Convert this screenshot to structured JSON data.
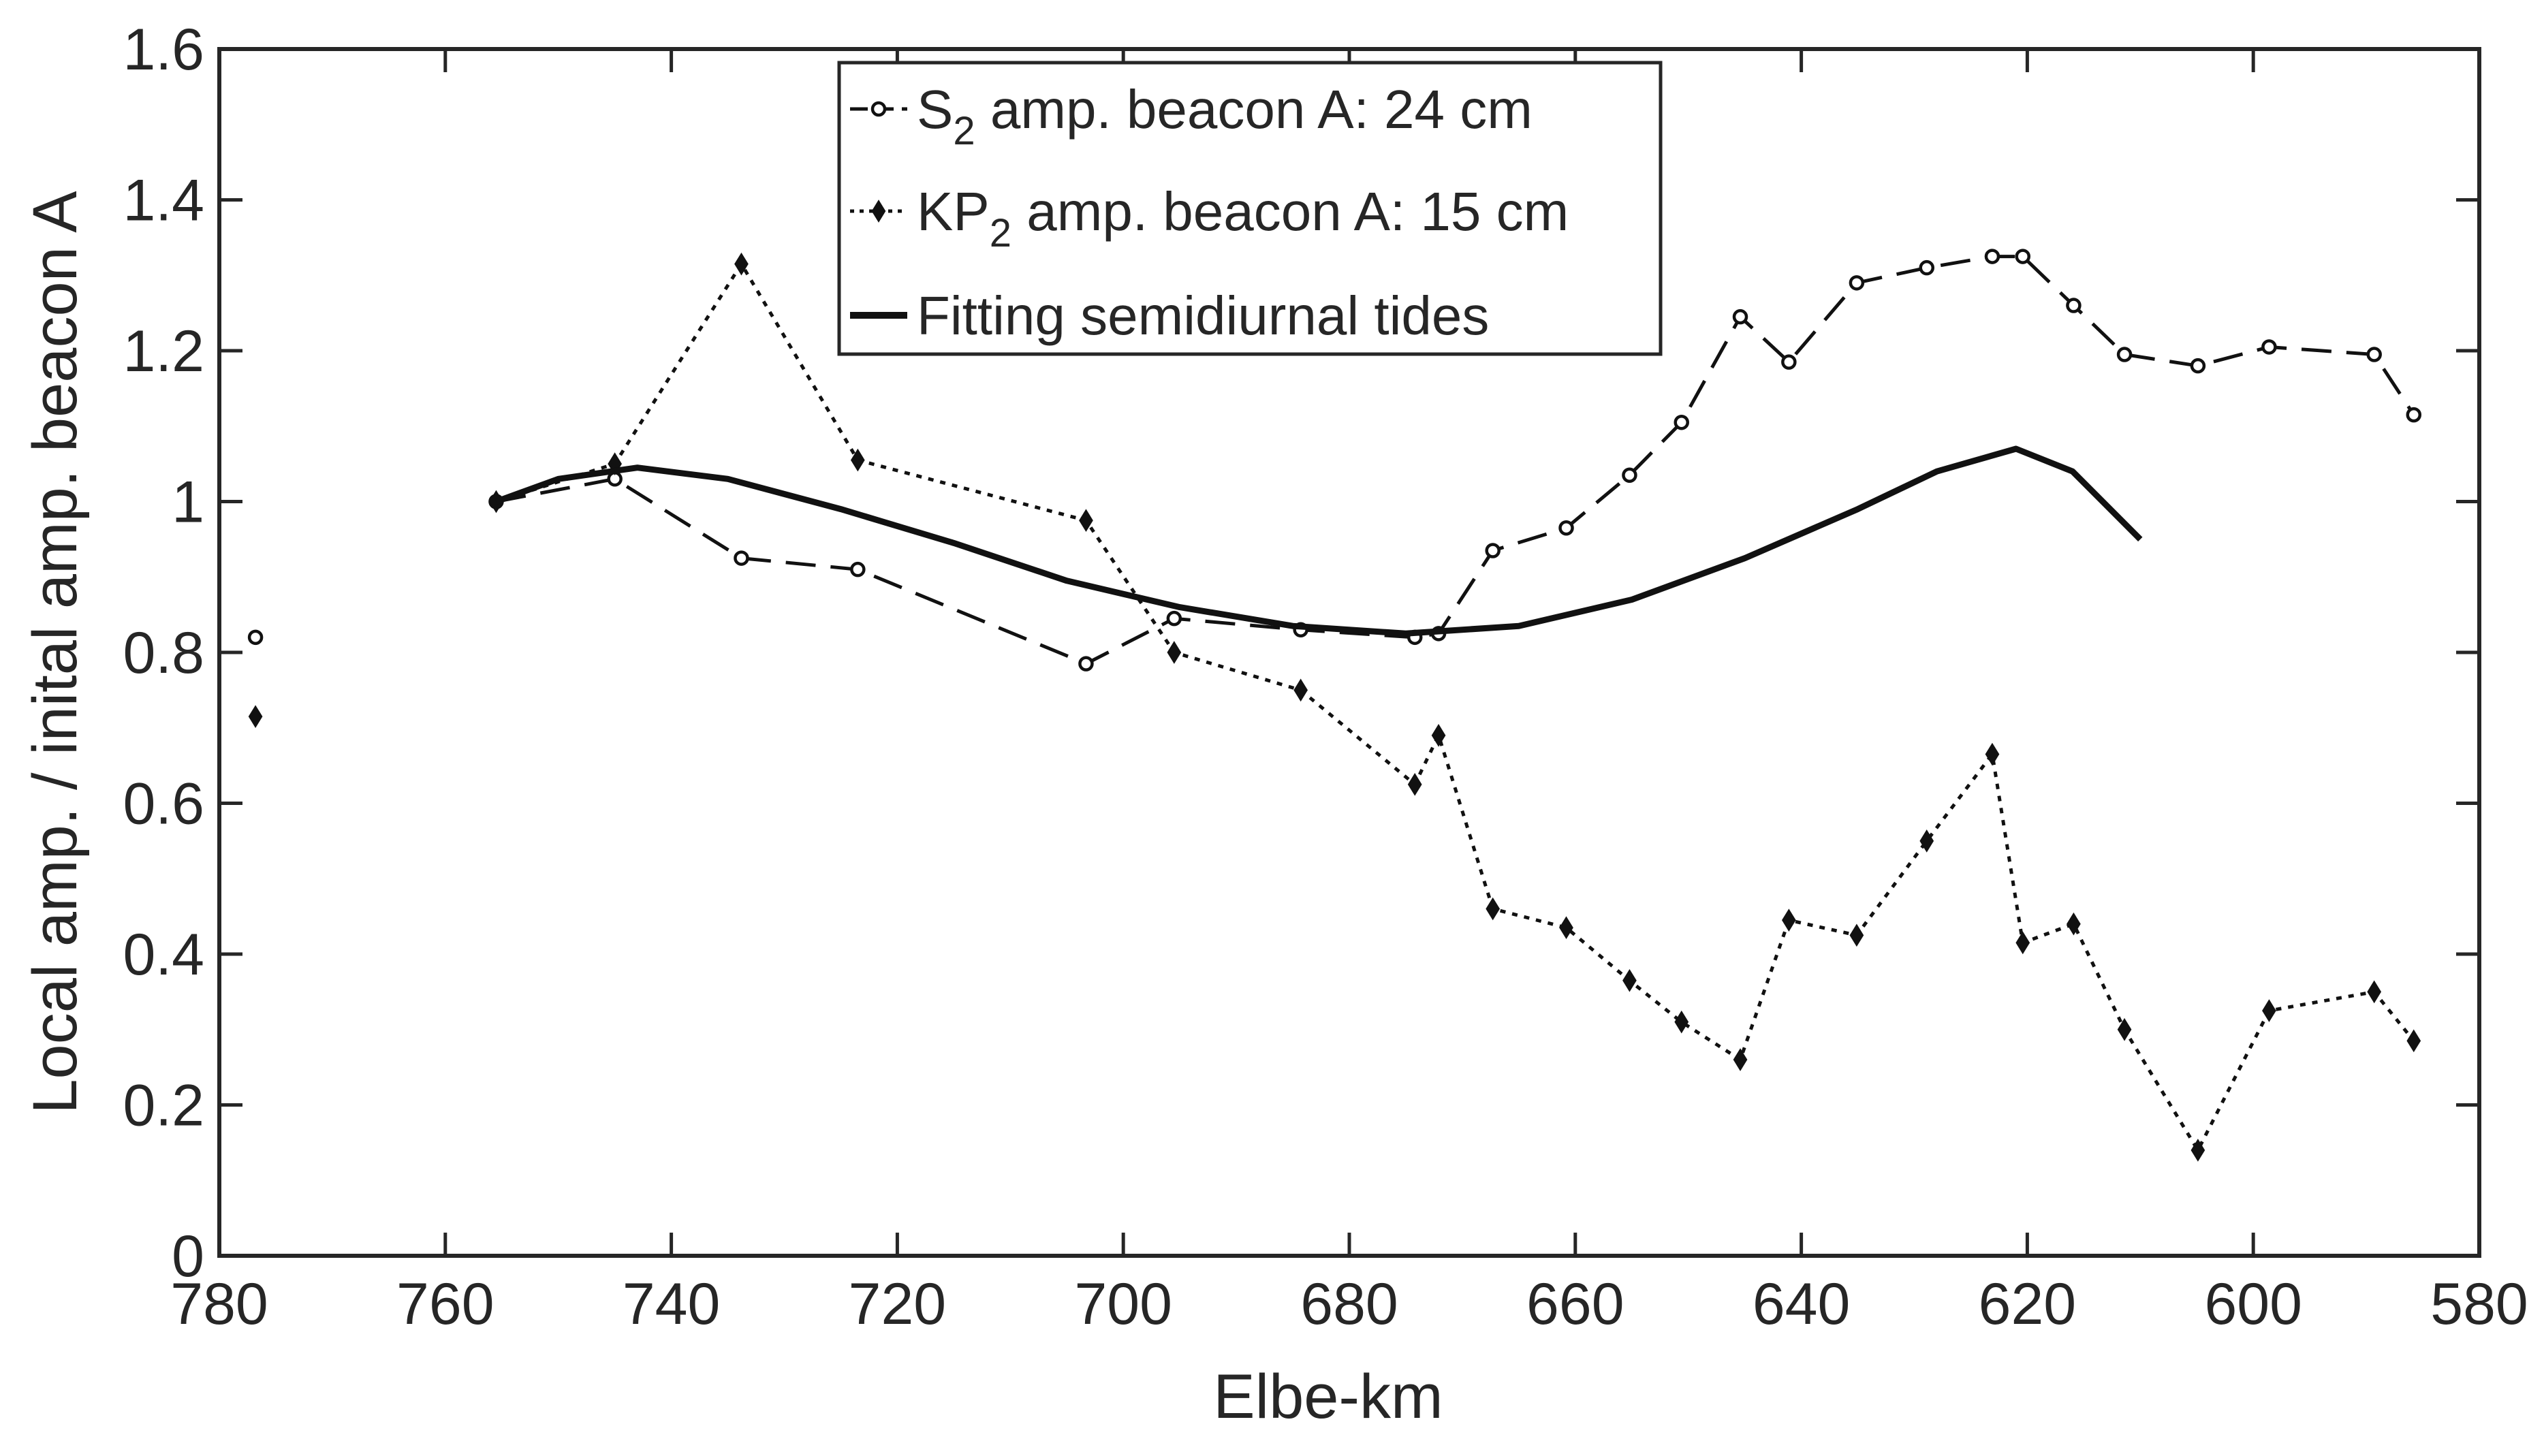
{
  "chart_data": {
    "type": "line",
    "title": "",
    "xlabel": "Elbe-km",
    "ylabel": "Local amp. / inital amp. beacon A",
    "xlim": [
      780,
      580
    ],
    "ylim": [
      0,
      1.6
    ],
    "x_reversed": true,
    "x_ticks": [
      780,
      760,
      740,
      720,
      700,
      680,
      660,
      640,
      620,
      600,
      580
    ],
    "x_tick_labels": [
      "780",
      "760",
      "740",
      "720",
      "700",
      "680",
      "660",
      "640",
      "620",
      "600",
      "580"
    ],
    "y_ticks": [
      0,
      0.2,
      0.4,
      0.6,
      0.8,
      1.0,
      1.2,
      1.4,
      1.6
    ],
    "y_tick_labels": [
      "0",
      "0.2",
      "0.4",
      "0.6",
      "0.8",
      "1",
      "1.2",
      "1.4",
      "1.6"
    ],
    "grid": false,
    "legend_position": "top-center",
    "series": [
      {
        "name": "S2 amp. beacon A: 24 cm",
        "legend_parts": [
          "S",
          "2",
          " amp. beacon A: 24 cm"
        ],
        "style": "dashed",
        "marker": "circle",
        "points": [
          {
            "x": 755.5,
            "y": 1.0
          },
          {
            "x": 745,
            "y": 1.03
          },
          {
            "x": 733.8,
            "y": 0.925
          },
          {
            "x": 723.5,
            "y": 0.91
          },
          {
            "x": 703.3,
            "y": 0.785
          },
          {
            "x": 695.5,
            "y": 0.845
          },
          {
            "x": 684.3,
            "y": 0.83
          },
          {
            "x": 674.2,
            "y": 0.82
          },
          {
            "x": 672.1,
            "y": 0.825
          },
          {
            "x": 667.3,
            "y": 0.935
          },
          {
            "x": 660.8,
            "y": 0.965
          },
          {
            "x": 655.2,
            "y": 1.035
          },
          {
            "x": 650.6,
            "y": 1.105
          },
          {
            "x": 645.4,
            "y": 1.245
          },
          {
            "x": 641.1,
            "y": 1.185
          },
          {
            "x": 635.1,
            "y": 1.29
          },
          {
            "x": 628.9,
            "y": 1.31
          },
          {
            "x": 623.1,
            "y": 1.325
          },
          {
            "x": 620.4,
            "y": 1.325
          },
          {
            "x": 615.9,
            "y": 1.26
          },
          {
            "x": 611.4,
            "y": 1.195
          },
          {
            "x": 604.9,
            "y": 1.18
          },
          {
            "x": 598.6,
            "y": 1.205
          },
          {
            "x": 589.3,
            "y": 1.195
          },
          {
            "x": 585.8,
            "y": 1.115
          }
        ],
        "outlier": {
          "x": 776.8,
          "y": 0.82
        }
      },
      {
        "name": "KP2 amp. beacon A: 15 cm",
        "legend_parts": [
          "KP",
          "2",
          " amp. beacon A: 15 cm"
        ],
        "style": "dotted",
        "marker": "diamond",
        "points": [
          {
            "x": 755.5,
            "y": 1.0
          },
          {
            "x": 745,
            "y": 1.05
          },
          {
            "x": 733.8,
            "y": 1.315
          },
          {
            "x": 723.5,
            "y": 1.055
          },
          {
            "x": 703.3,
            "y": 0.975
          },
          {
            "x": 695.5,
            "y": 0.8
          },
          {
            "x": 684.3,
            "y": 0.75
          },
          {
            "x": 674.2,
            "y": 0.625
          },
          {
            "x": 672.1,
            "y": 0.69
          },
          {
            "x": 667.3,
            "y": 0.46
          },
          {
            "x": 660.8,
            "y": 0.435
          },
          {
            "x": 655.2,
            "y": 0.365
          },
          {
            "x": 650.6,
            "y": 0.31
          },
          {
            "x": 645.4,
            "y": 0.26
          },
          {
            "x": 641.1,
            "y": 0.445
          },
          {
            "x": 635.1,
            "y": 0.425
          },
          {
            "x": 628.9,
            "y": 0.55
          },
          {
            "x": 623.1,
            "y": 0.665
          },
          {
            "x": 620.4,
            "y": 0.415
          },
          {
            "x": 615.9,
            "y": 0.44
          },
          {
            "x": 611.4,
            "y": 0.3
          },
          {
            "x": 604.9,
            "y": 0.14
          },
          {
            "x": 598.6,
            "y": 0.325
          },
          {
            "x": 589.3,
            "y": 0.35
          },
          {
            "x": 585.8,
            "y": 0.285
          }
        ],
        "outlier": {
          "x": 776.8,
          "y": 0.715
        }
      },
      {
        "name": "Fitting semidiurnal tides",
        "legend_parts": [
          "Fitting semidiurnal tides"
        ],
        "style": "solid",
        "marker": "none",
        "points": [
          {
            "x": 755.5,
            "y": 1.0
          },
          {
            "x": 750,
            "y": 1.03
          },
          {
            "x": 743,
            "y": 1.045
          },
          {
            "x": 735,
            "y": 1.03
          },
          {
            "x": 725,
            "y": 0.99
          },
          {
            "x": 715,
            "y": 0.945
          },
          {
            "x": 705,
            "y": 0.895
          },
          {
            "x": 695,
            "y": 0.86
          },
          {
            "x": 685,
            "y": 0.835
          },
          {
            "x": 675,
            "y": 0.825
          },
          {
            "x": 665,
            "y": 0.835
          },
          {
            "x": 655,
            "y": 0.87
          },
          {
            "x": 645,
            "y": 0.925
          },
          {
            "x": 635,
            "y": 0.99
          },
          {
            "x": 628,
            "y": 1.04
          },
          {
            "x": 621,
            "y": 1.07
          },
          {
            "x": 616,
            "y": 1.04
          },
          {
            "x": 610,
            "y": 0.95
          }
        ]
      }
    ]
  }
}
